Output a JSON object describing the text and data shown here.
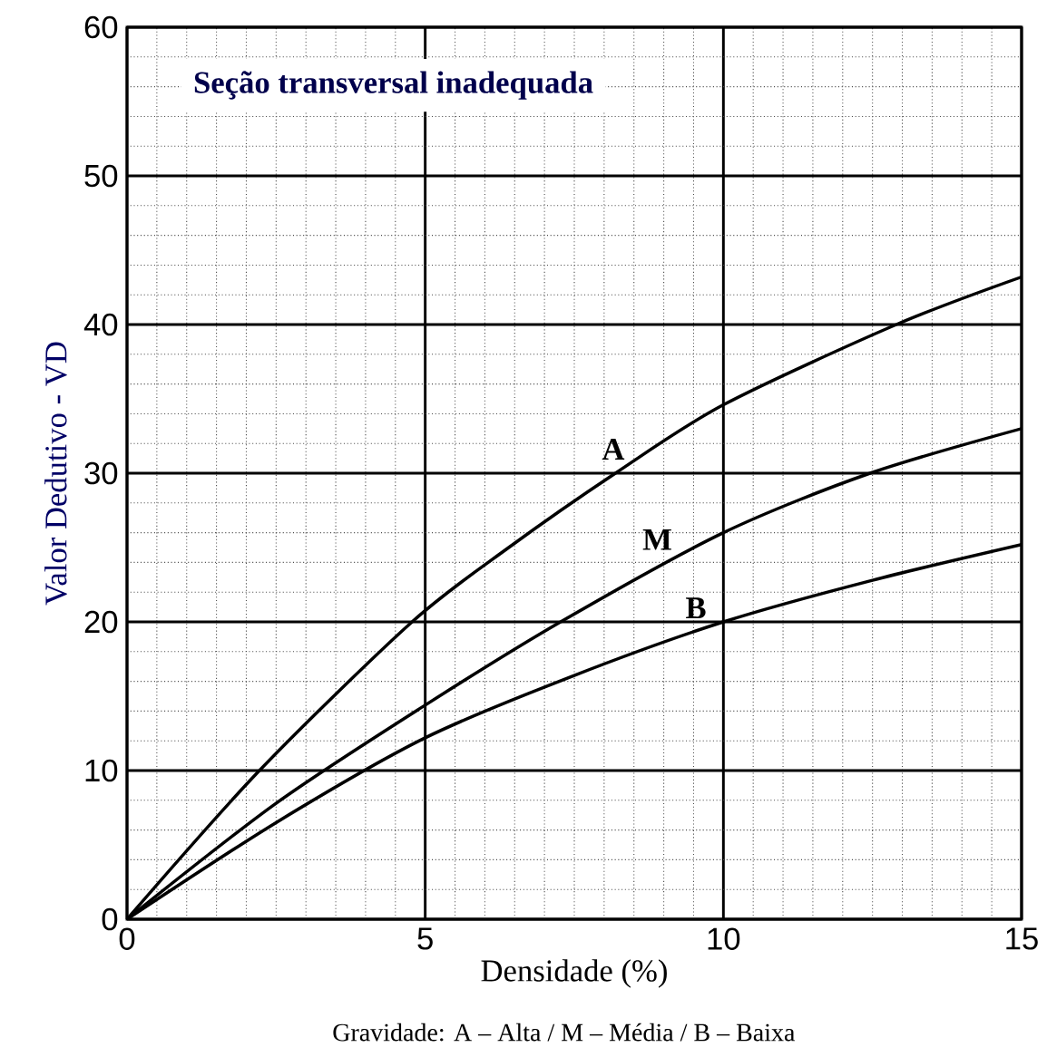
{
  "chart_data": {
    "type": "line",
    "title": "Seção  transversal inadequada",
    "xlabel": "Densidade (%)",
    "ylabel": "Valor Dedutivo - VD",
    "annotations": [
      "Gravidade: A – Alta / M – Média / B – Baixa"
    ],
    "xlim": [
      0,
      15
    ],
    "ylim": [
      0,
      60
    ],
    "xticks": [
      0,
      5,
      10,
      15
    ],
    "yticks": [
      0,
      10,
      20,
      30,
      40,
      50,
      60
    ],
    "grid": true,
    "marker": "none",
    "line_style": "solid",
    "series": [
      {
        "name": "A",
        "color": "#000000",
        "x": [
          0,
          2.22,
          4.78,
          6.4,
          8.19,
          10,
          12.9,
          15
        ],
        "values": [
          0,
          10,
          20,
          25,
          30,
          34.6,
          40,
          43.2
        ]
      },
      {
        "name": "M",
        "color": "#000000",
        "x": [
          0,
          2.5,
          5,
          7.27,
          10,
          12.46,
          15
        ],
        "values": [
          0,
          7.8,
          14.4,
          20,
          26,
          30,
          33
        ]
      },
      {
        "name": "B",
        "color": "#000000",
        "x": [
          0,
          2.5,
          5,
          7.5,
          10,
          12.5,
          15
        ],
        "values": [
          0,
          6.5,
          12.2,
          16.4,
          20,
          22.8,
          25.2
        ]
      }
    ]
  }
}
